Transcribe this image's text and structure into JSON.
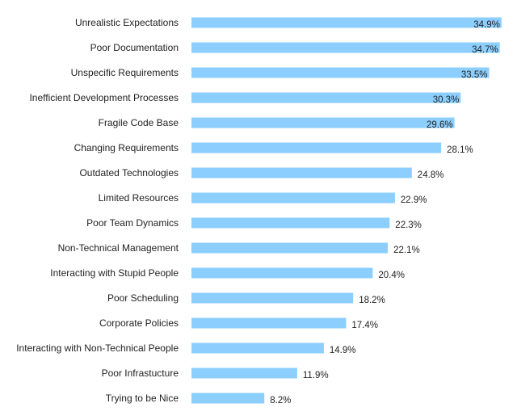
{
  "chart_data": {
    "type": "bar",
    "orientation": "horizontal",
    "title": "",
    "xlabel": "",
    "ylabel": "",
    "xlim": [
      0,
      35
    ],
    "grid": false,
    "value_suffix": "%",
    "bar_color": "#8ccfff",
    "categories": [
      "Unrealistic Expectations",
      "Poor Documentation",
      "Unspecific Requirements",
      "Inefficient Development Processes",
      "Fragile Code Base",
      "Changing Requirements",
      "Outdated Technologies",
      "Limited Resources",
      "Poor Team Dynamics",
      "Non-Technical Management",
      "Interacting with Stupid People",
      "Poor Scheduling",
      "Corporate Policies",
      "Interacting with Non-Technical People",
      "Poor Infrastucture",
      "Trying to be Nice"
    ],
    "values": [
      34.9,
      34.7,
      33.5,
      30.3,
      29.6,
      28.1,
      24.8,
      22.9,
      22.3,
      22.1,
      20.4,
      18.2,
      17.4,
      14.9,
      11.9,
      8.2
    ],
    "value_labels": [
      "34.9%",
      "34.7%",
      "33.5%",
      "30.3%",
      "29.6%",
      "28.1%",
      "24.8%",
      "22.9%",
      "22.3%",
      "22.1%",
      "20.4%",
      "18.2%",
      "17.4%",
      "14.9%",
      "11.9%",
      "8.2%"
    ]
  }
}
